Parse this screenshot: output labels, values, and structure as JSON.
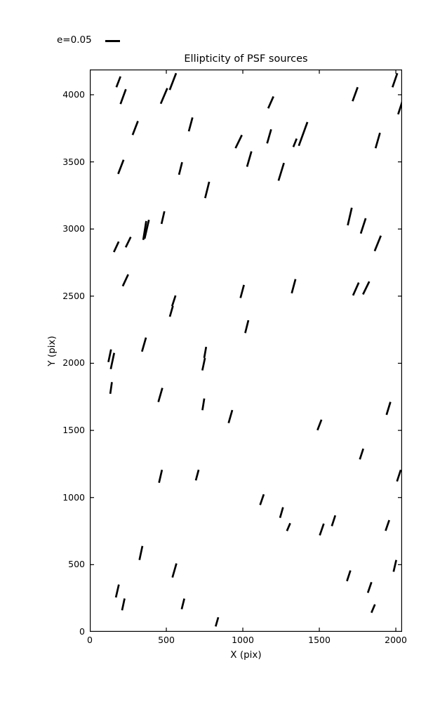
{
  "page": {
    "background": "#ffffff",
    "foreground": "#000000"
  },
  "legend": {
    "label": "e=0.05",
    "reference_e": 0.05
  },
  "chart_data": {
    "type": "scatter",
    "variant": "ellipticity-whisker-map",
    "title": "Ellipticity of PSF sources",
    "xlabel": "X (pix)",
    "ylabel": "Y (pix)",
    "xlim": [
      0,
      2041
    ],
    "ylim": [
      0,
      4188
    ],
    "x_ticks": [
      0,
      500,
      1000,
      1500,
      2000
    ],
    "y_ticks": [
      0,
      500,
      1000,
      1500,
      2000,
      2500,
      3000,
      3500,
      4000
    ],
    "grid": false,
    "line_color": "#000000",
    "legend_entry": {
      "label": "e=0.05",
      "e": 0.05,
      "position": "top-left-outside"
    },
    "segments_format": [
      "x_pix",
      "y_pix",
      "angle_deg_ccw_from_x",
      "ellipticity"
    ],
    "segments": [
      [
        187,
        4096,
        69,
        0.041
      ],
      [
        218,
        3986,
        70,
        0.056
      ],
      [
        543,
        4098,
        69,
        0.064
      ],
      [
        485,
        3991,
        67,
        0.06
      ],
      [
        297,
        3752,
        69,
        0.053
      ],
      [
        203,
        3463,
        69,
        0.054
      ],
      [
        593,
        3451,
        76,
        0.046
      ],
      [
        478,
        3085,
        77,
        0.046
      ],
      [
        372,
        2998,
        77,
        0.069
      ],
      [
        359,
        2989,
        81,
        0.068
      ],
      [
        251,
        2902,
        64,
        0.041
      ],
      [
        173,
        2867,
        65,
        0.041
      ],
      [
        1183,
        3943,
        66,
        0.046
      ],
      [
        659,
        3779,
        75,
        0.051
      ],
      [
        1172,
        3690,
        74,
        0.052
      ],
      [
        973,
        3651,
        64,
        0.052
      ],
      [
        1341,
        3642,
        68,
        0.032
      ],
      [
        1042,
        3521,
        74,
        0.057
      ],
      [
        1251,
        3426,
        73,
        0.066
      ],
      [
        767,
        3291,
        76,
        0.06
      ],
      [
        1994,
        4108,
        71,
        0.053
      ],
      [
        1734,
        4004,
        70,
        0.053
      ],
      [
        2029,
        3903,
        72,
        0.049
      ],
      [
        1394,
        3708,
        70,
        0.09
      ],
      [
        1882,
        3659,
        74,
        0.057
      ],
      [
        1699,
        3093,
        77,
        0.064
      ],
      [
        1787,
        3023,
        72,
        0.057
      ],
      [
        1882,
        2893,
        68,
        0.059
      ],
      [
        233,
        2618,
        65,
        0.046
      ],
      [
        549,
        2465,
        72,
        0.04
      ],
      [
        533,
        2387,
        74,
        0.04
      ],
      [
        354,
        2139,
        74,
        0.052
      ],
      [
        130,
        2056,
        78,
        0.046
      ],
      [
        148,
        2017,
        78,
        0.059
      ],
      [
        139,
        1816,
        82,
        0.042
      ],
      [
        461,
        1764,
        74,
        0.052
      ],
      [
        996,
        2535,
        75,
        0.048
      ],
      [
        1332,
        2574,
        75,
        0.052
      ],
      [
        1026,
        2273,
        76,
        0.047
      ],
      [
        754,
        2081,
        80,
        0.04
      ],
      [
        744,
        1993,
        78,
        0.045
      ],
      [
        742,
        1694,
        81,
        0.042
      ],
      [
        919,
        1603,
        74,
        0.048
      ],
      [
        1739,
        2553,
        66,
        0.05
      ],
      [
        1806,
        2561,
        64,
        0.051
      ],
      [
        1952,
        1664,
        73,
        0.048
      ],
      [
        1501,
        1541,
        69,
        0.04
      ],
      [
        462,
        1158,
        77,
        0.047
      ],
      [
        334,
        587,
        78,
        0.051
      ],
      [
        553,
        457,
        74,
        0.052
      ],
      [
        180,
        304,
        77,
        0.047
      ],
      [
        219,
        204,
        78,
        0.043
      ],
      [
        609,
        208,
        76,
        0.039
      ],
      [
        702,
        1167,
        75,
        0.039
      ],
      [
        1125,
        984,
        71,
        0.04
      ],
      [
        1253,
        888,
        74,
        0.039
      ],
      [
        1299,
        780,
        67,
        0.03
      ],
      [
        831,
        74,
        74,
        0.034
      ],
      [
        1776,
        1324,
        72,
        0.04
      ],
      [
        2020,
        1163,
        72,
        0.043
      ],
      [
        1593,
        827,
        72,
        0.04
      ],
      [
        1516,
        762,
        71,
        0.044
      ],
      [
        1945,
        792,
        71,
        0.04
      ],
      [
        1994,
        491,
        77,
        0.043
      ],
      [
        1692,
        417,
        72,
        0.04
      ],
      [
        1829,
        330,
        71,
        0.04
      ],
      [
        1852,
        173,
        67,
        0.032
      ]
    ]
  }
}
